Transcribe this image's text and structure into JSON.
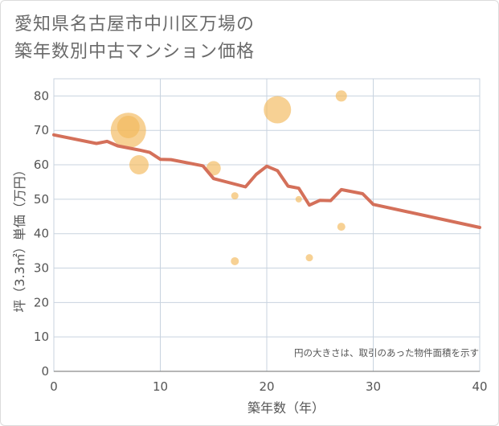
{
  "title": {
    "line1": "愛知県名古屋市中川区万場の",
    "line2": "築年数別中古マンション価格"
  },
  "chart_data": {
    "type": "scatter",
    "title": "愛知県名古屋市中川区万場の築年数別中古マンション価格",
    "xlabel": "築年数（年）",
    "ylabel": "坪（3.3㎡）単価（万円）",
    "xlim": [
      0,
      40
    ],
    "ylim": [
      0,
      85
    ],
    "x_ticks": [
      0,
      10,
      20,
      30,
      40
    ],
    "y_ticks": [
      0,
      10,
      20,
      30,
      40,
      50,
      60,
      70,
      80
    ],
    "grid": true,
    "annotation": "円の大きさは、取引のあった物件面積を示す",
    "colors": {
      "bubble": "#f2b95a",
      "line": "#d4705a",
      "grid": "#c8d3df"
    },
    "scatter": [
      {
        "x": 7,
        "y": 70,
        "size": 22
      },
      {
        "x": 7,
        "y": 71,
        "size": 14
      },
      {
        "x": 8,
        "y": 60,
        "size": 12
      },
      {
        "x": 15,
        "y": 59,
        "size": 9
      },
      {
        "x": 17,
        "y": 51,
        "size": 4.5
      },
      {
        "x": 17,
        "y": 32,
        "size": 5
      },
      {
        "x": 21,
        "y": 76,
        "size": 17
      },
      {
        "x": 23,
        "y": 50,
        "size": 4
      },
      {
        "x": 24,
        "y": 33,
        "size": 4.5
      },
      {
        "x": 27,
        "y": 80,
        "size": 7
      },
      {
        "x": 27,
        "y": 42,
        "size": 5
      }
    ],
    "line": {
      "x": [
        0,
        4,
        5,
        6,
        8,
        9,
        10,
        11,
        14,
        15,
        18,
        19,
        20,
        21,
        22,
        23,
        24,
        25,
        26,
        27,
        29,
        30,
        40
      ],
      "y": [
        68.7,
        66.2,
        66.8,
        65.5,
        64.3,
        63.6,
        61.6,
        61.5,
        59.7,
        56.0,
        53.6,
        57.2,
        59.6,
        58.3,
        53.8,
        53.2,
        48.3,
        49.7,
        49.6,
        52.8,
        51.6,
        48.5,
        41.8
      ]
    }
  }
}
